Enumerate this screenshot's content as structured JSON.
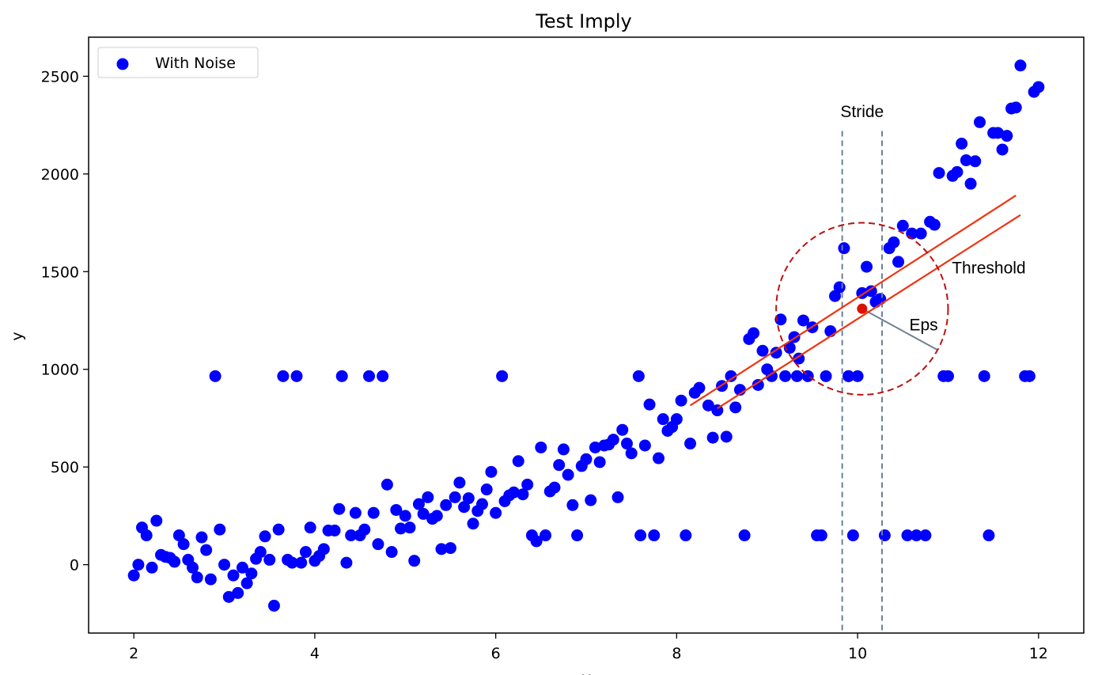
{
  "chart_data": {
    "type": "scatter",
    "title": "Test Imply",
    "xlabel": "X",
    "ylabel": "y",
    "xlim": [
      1.5,
      12.5
    ],
    "ylim": [
      -350,
      2700
    ],
    "x_ticks": [
      2,
      4,
      6,
      8,
      10,
      12
    ],
    "y_ticks": [
      0,
      500,
      1000,
      1500,
      2000,
      2500
    ],
    "grid": false,
    "legend": {
      "position": "top-left",
      "entries": [
        "With Noise"
      ]
    },
    "series": [
      {
        "name": "With Noise",
        "color": "#0000ff",
        "points": [
          [
            2.0,
            -55
          ],
          [
            2.05,
            0
          ],
          [
            2.09,
            190
          ],
          [
            2.14,
            150
          ],
          [
            2.2,
            -15
          ],
          [
            2.25,
            225
          ],
          [
            2.3,
            50
          ],
          [
            2.35,
            40
          ],
          [
            2.4,
            35
          ],
          [
            2.45,
            15
          ],
          [
            2.5,
            150
          ],
          [
            2.55,
            105
          ],
          [
            2.6,
            25
          ],
          [
            2.65,
            -15
          ],
          [
            2.7,
            -65
          ],
          [
            2.75,
            140
          ],
          [
            2.8,
            75
          ],
          [
            2.85,
            -75
          ],
          [
            2.95,
            180
          ],
          [
            3.0,
            0
          ],
          [
            3.05,
            -165
          ],
          [
            3.1,
            -55
          ],
          [
            3.15,
            -145
          ],
          [
            3.2,
            -15
          ],
          [
            3.25,
            -95
          ],
          [
            3.3,
            -45
          ],
          [
            3.35,
            30
          ],
          [
            3.4,
            65
          ],
          [
            3.45,
            145
          ],
          [
            3.5,
            25
          ],
          [
            3.55,
            -210
          ],
          [
            3.6,
            180
          ],
          [
            3.7,
            25
          ],
          [
            3.75,
            10
          ],
          [
            3.85,
            10
          ],
          [
            3.9,
            65
          ],
          [
            3.95,
            190
          ],
          [
            4.0,
            20
          ],
          [
            4.05,
            45
          ],
          [
            4.1,
            80
          ],
          [
            4.15,
            175
          ],
          [
            4.22,
            175
          ],
          [
            4.27,
            285
          ],
          [
            4.35,
            10
          ],
          [
            4.4,
            150
          ],
          [
            4.45,
            265
          ],
          [
            4.5,
            150
          ],
          [
            4.55,
            180
          ],
          [
            4.65,
            265
          ],
          [
            4.7,
            105
          ],
          [
            4.8,
            410
          ],
          [
            4.85,
            65
          ],
          [
            4.9,
            280
          ],
          [
            4.95,
            185
          ],
          [
            5.0,
            250
          ],
          [
            5.05,
            190
          ],
          [
            5.1,
            20
          ],
          [
            5.15,
            310
          ],
          [
            5.2,
            260
          ],
          [
            5.25,
            345
          ],
          [
            5.3,
            235
          ],
          [
            5.35,
            250
          ],
          [
            5.4,
            80
          ],
          [
            5.45,
            305
          ],
          [
            5.5,
            85
          ],
          [
            5.55,
            345
          ],
          [
            5.6,
            420
          ],
          [
            5.65,
            295
          ],
          [
            5.7,
            340
          ],
          [
            5.75,
            210
          ],
          [
            5.8,
            275
          ],
          [
            5.85,
            310
          ],
          [
            5.9,
            385
          ],
          [
            5.95,
            475
          ],
          [
            6.0,
            265
          ],
          [
            6.1,
            325
          ],
          [
            6.15,
            355
          ],
          [
            6.2,
            370
          ],
          [
            6.25,
            530
          ],
          [
            6.3,
            360
          ],
          [
            6.35,
            410
          ],
          [
            6.4,
            150
          ],
          [
            6.45,
            120
          ],
          [
            6.5,
            600
          ],
          [
            6.55,
            150
          ],
          [
            6.6,
            375
          ],
          [
            6.65,
            395
          ],
          [
            6.7,
            510
          ],
          [
            6.75,
            590
          ],
          [
            6.8,
            460
          ],
          [
            6.85,
            305
          ],
          [
            6.9,
            150
          ],
          [
            6.95,
            505
          ],
          [
            7.0,
            540
          ],
          [
            7.05,
            330
          ],
          [
            7.1,
            600
          ],
          [
            7.15,
            525
          ],
          [
            7.2,
            610
          ],
          [
            7.25,
            615
          ],
          [
            7.3,
            640
          ],
          [
            7.35,
            345
          ],
          [
            7.4,
            690
          ],
          [
            7.45,
            620
          ],
          [
            7.5,
            570
          ],
          [
            7.6,
            150
          ],
          [
            7.65,
            610
          ],
          [
            7.7,
            820
          ],
          [
            7.75,
            150
          ],
          [
            7.8,
            545
          ],
          [
            7.85,
            745
          ],
          [
            7.9,
            685
          ],
          [
            7.95,
            705
          ],
          [
            8.0,
            745
          ],
          [
            8.05,
            840
          ],
          [
            8.1,
            150
          ],
          [
            8.15,
            620
          ],
          [
            8.2,
            880
          ],
          [
            8.25,
            905
          ],
          [
            8.35,
            815
          ],
          [
            8.4,
            650
          ],
          [
            8.45,
            790
          ],
          [
            8.5,
            915
          ],
          [
            8.55,
            655
          ],
          [
            8.6,
            965
          ],
          [
            8.65,
            805
          ],
          [
            8.7,
            895
          ],
          [
            8.75,
            150
          ],
          [
            8.8,
            1155
          ],
          [
            8.85,
            1185
          ],
          [
            8.9,
            920
          ],
          [
            8.95,
            1095
          ],
          [
            9.0,
            1000
          ],
          [
            9.05,
            965
          ],
          [
            9.1,
            1085
          ],
          [
            9.15,
            1255
          ],
          [
            9.2,
            965
          ],
          [
            9.25,
            1110
          ],
          [
            9.3,
            1165
          ],
          [
            9.35,
            1055
          ],
          [
            9.4,
            1250
          ],
          [
            9.45,
            965
          ],
          [
            9.5,
            1215
          ],
          [
            9.55,
            150
          ],
          [
            9.6,
            150
          ],
          [
            9.65,
            965
          ],
          [
            9.7,
            1195
          ],
          [
            9.75,
            1375
          ],
          [
            9.8,
            1420
          ],
          [
            9.85,
            1620
          ],
          [
            9.9,
            965
          ],
          [
            9.95,
            150
          ],
          [
            10.0,
            965
          ],
          [
            10.05,
            1390
          ],
          [
            10.1,
            1525
          ],
          [
            10.15,
            1400
          ],
          [
            10.2,
            1345
          ],
          [
            10.25,
            1360
          ],
          [
            10.3,
            150
          ],
          [
            10.35,
            1620
          ],
          [
            10.4,
            1650
          ],
          [
            10.45,
            1550
          ],
          [
            10.5,
            1735
          ],
          [
            10.55,
            150
          ],
          [
            10.6,
            1695
          ],
          [
            10.65,
            150
          ],
          [
            10.7,
            1695
          ],
          [
            10.75,
            150
          ],
          [
            10.8,
            1755
          ],
          [
            10.85,
            1740
          ],
          [
            10.9,
            2005
          ],
          [
            10.95,
            965
          ],
          [
            11.0,
            965
          ],
          [
            11.05,
            1990
          ],
          [
            11.1,
            2010
          ],
          [
            11.15,
            2155
          ],
          [
            11.2,
            2070
          ],
          [
            11.25,
            1950
          ],
          [
            11.3,
            2065
          ],
          [
            11.35,
            2265
          ],
          [
            11.4,
            965
          ],
          [
            11.45,
            150
          ],
          [
            11.5,
            2210
          ],
          [
            11.55,
            2210
          ],
          [
            11.6,
            2125
          ],
          [
            11.65,
            2195
          ],
          [
            11.7,
            2335
          ],
          [
            11.75,
            2340
          ],
          [
            11.8,
            2555
          ],
          [
            11.85,
            965
          ],
          [
            11.9,
            965
          ],
          [
            11.95,
            2420
          ],
          [
            12.0,
            2445
          ],
          [
            2.9,
            965
          ],
          [
            3.65,
            965
          ],
          [
            3.8,
            965
          ],
          [
            4.3,
            965
          ],
          [
            4.6,
            965
          ],
          [
            4.75,
            965
          ],
          [
            6.07,
            965
          ],
          [
            7.58,
            965
          ],
          [
            9.33,
            965
          ],
          [
            9.9,
            965
          ]
        ]
      }
    ],
    "highlight_point": {
      "x": 10.05,
      "y": 1310,
      "color": "#dd1100"
    },
    "circle_radius_x": 0.95,
    "stride_lines_x": [
      9.83,
      10.27
    ],
    "threshold_lines": [
      {
        "from": [
          8.15,
          815
        ],
        "to": [
          11.75,
          1890
        ]
      },
      {
        "from": [
          8.45,
          800
        ],
        "to": [
          11.8,
          1790
        ]
      }
    ],
    "eps_line": {
      "from": [
        10.05,
        1310
      ],
      "to": [
        10.88,
        1100
      ]
    },
    "annotations": {
      "stride": {
        "text": "Stride",
        "x": 10.05,
        "y": 2290
      },
      "threshold": {
        "text": "Threshold",
        "x": 11.45,
        "y": 1490
      },
      "eps": {
        "text": "Eps",
        "x": 10.73,
        "y": 1200
      }
    },
    "colors": {
      "points": "#0000ff",
      "threshold": "#ee3311",
      "circle": "#bb1111",
      "stride": "#6a7f9a",
      "eps": "#708090"
    }
  }
}
